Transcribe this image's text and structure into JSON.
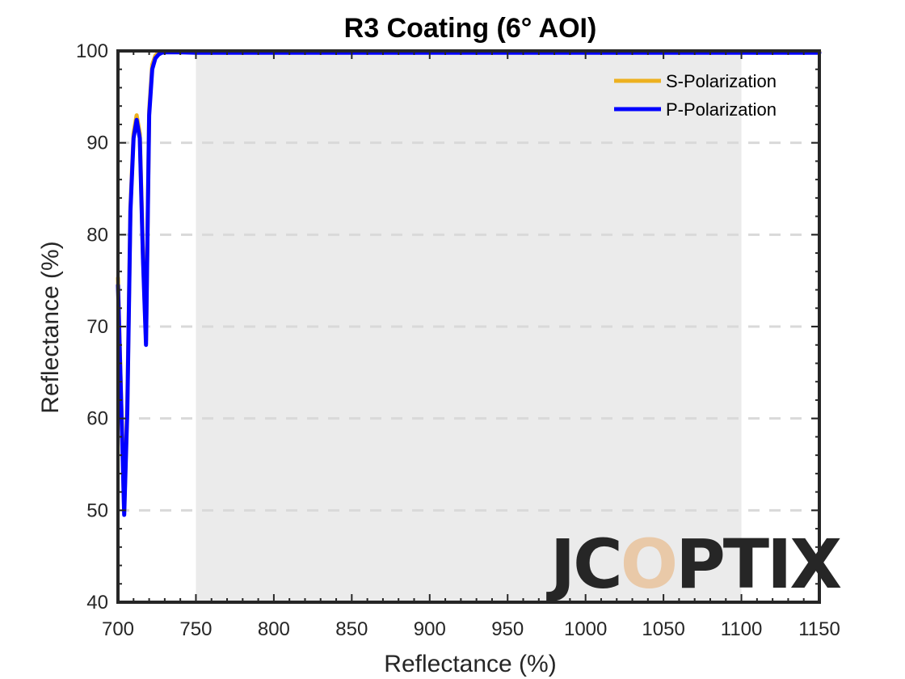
{
  "chart_data": {
    "type": "line",
    "title": "R3 Coating  (6° AOI)",
    "xlabel": "Reflectance (%)",
    "ylabel": "Reflectance (%)",
    "xlim": [
      700,
      1150
    ],
    "ylim": [
      40,
      100
    ],
    "xticks": [
      700,
      750,
      800,
      850,
      900,
      950,
      1000,
      1050,
      1100,
      1150
    ],
    "yticks": [
      40,
      50,
      60,
      70,
      80,
      90,
      100
    ],
    "grid": "horizontal dashed",
    "highlight_band": [
      750,
      1100
    ],
    "legend_position": "top-right",
    "series": [
      {
        "name": "S-Polarization",
        "color": "#EDB120",
        "x": [
          700,
          702,
          704,
          706,
          708,
          710,
          712,
          714,
          716,
          718,
          720,
          722,
          724,
          726,
          728,
          730,
          740,
          750,
          800,
          900,
          1000,
          1100,
          1150
        ],
        "y": [
          75.3,
          62,
          50,
          62,
          83,
          91,
          93,
          91,
          78,
          68.5,
          93.5,
          98.5,
          99.5,
          99.8,
          99.9,
          99.95,
          99.95,
          99.9,
          99.9,
          99.9,
          99.9,
          99.9,
          99.9
        ]
      },
      {
        "name": "P-Polarization",
        "color": "#0000FF",
        "x": [
          700,
          702,
          704,
          706,
          708,
          710,
          712,
          714,
          716,
          718,
          720,
          722,
          724,
          726,
          728,
          730,
          740,
          750,
          800,
          900,
          1000,
          1100,
          1150
        ],
        "y": [
          74.5,
          62,
          49.5,
          61,
          82.5,
          90.5,
          92.5,
          90.5,
          77.5,
          68,
          93,
          98,
          99.2,
          99.6,
          99.8,
          99.85,
          99.85,
          99.8,
          99.8,
          99.8,
          99.8,
          99.8,
          99.8
        ]
      }
    ]
  },
  "watermark": {
    "text": "JCOPTIX",
    "color": "#b3b3b3",
    "accent_color": "#e9c9a8"
  }
}
